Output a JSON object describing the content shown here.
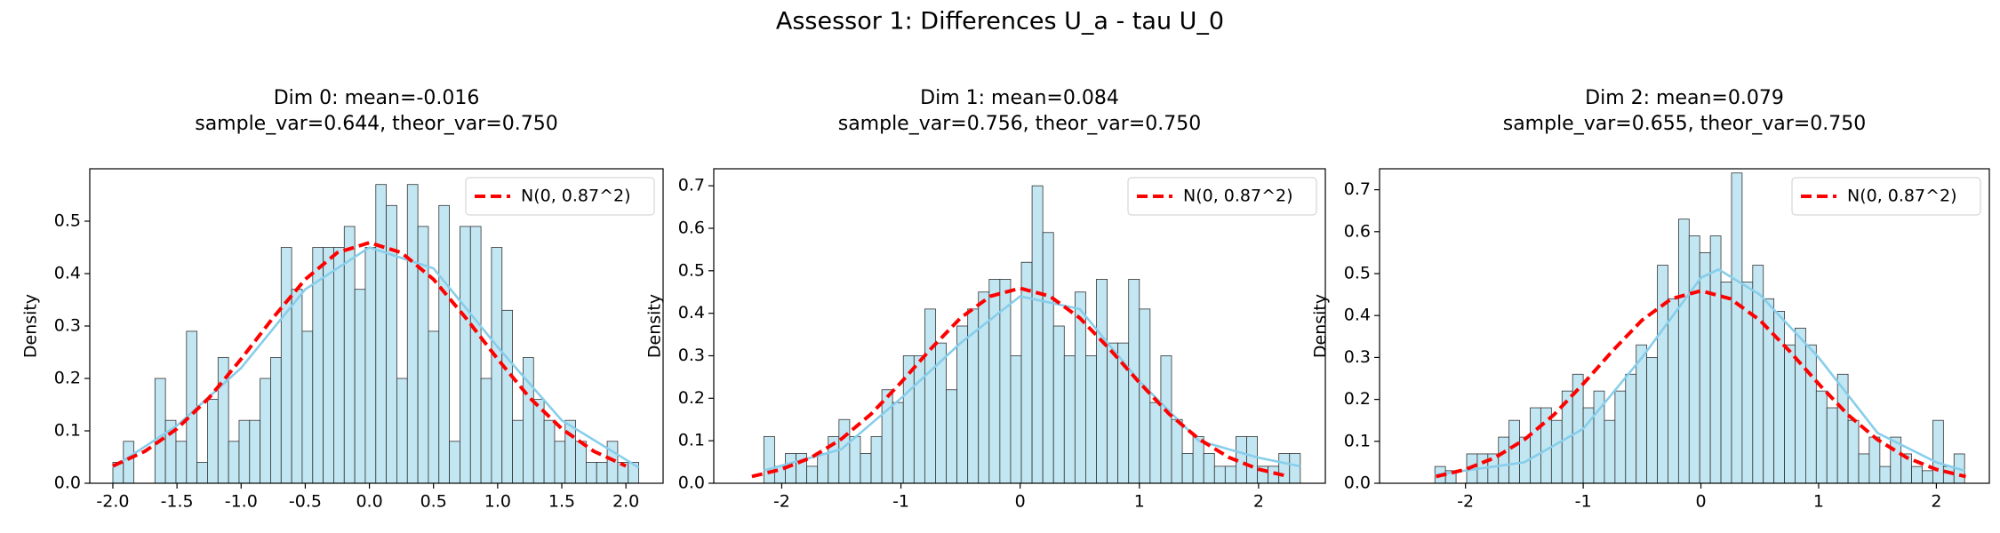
{
  "title": "Assessor 1: Differences U_a - tau U_0",
  "chart_data": [
    {
      "type": "histogram",
      "title": "Dim 0: mean=-0.016",
      "subtitle": "sample_var=0.644, theor_var=0.750",
      "ylabel": "Density",
      "bins": [
        -2.0,
        -1.918,
        -1.836,
        -1.754,
        -1.672,
        -1.59,
        -1.508,
        -1.426,
        -1.344,
        -1.262,
        -1.18,
        -1.098,
        -1.016,
        -0.934,
        -0.852,
        -0.77,
        -0.688,
        -0.606,
        -0.524,
        -0.442,
        -0.36,
        -0.278,
        -0.196,
        -0.114,
        -0.032,
        0.05,
        0.132,
        0.214,
        0.296,
        0.378,
        0.46,
        0.542,
        0.624,
        0.706,
        0.788,
        0.87,
        0.952,
        1.034,
        1.116,
        1.198,
        1.28,
        1.362,
        1.444,
        1.526,
        1.608,
        1.69,
        1.772,
        1.854,
        1.936,
        2.018,
        2.1
      ],
      "values": [
        0.04,
        0.08,
        0,
        0,
        0.2,
        0.12,
        0.08,
        0.29,
        0.04,
        0.16,
        0.24,
        0.08,
        0.12,
        0.12,
        0.2,
        0.24,
        0.45,
        0.37,
        0.29,
        0.45,
        0.45,
        0.45,
        0.49,
        0.37,
        0.45,
        0.57,
        0.53,
        0.2,
        0.57,
        0.49,
        0.29,
        0.53,
        0.08,
        0.49,
        0.49,
        0.2,
        0.45,
        0.33,
        0.12,
        0.24,
        0.16,
        0.12,
        0.08,
        0.12,
        0.08,
        0.04,
        0.04,
        0.08,
        0.04,
        0.04
      ],
      "color": "#c2e6f2",
      "series": [
        {
          "color": "#87ceeb",
          "x": [
            -2,
            -1.5,
            -1,
            -0.5,
            0,
            0.5,
            1,
            1.5,
            2.1
          ],
          "values": [
            0.03,
            0.11,
            0.22,
            0.37,
            0.45,
            0.41,
            0.26,
            0.12,
            0.03
          ]
        },
        {
          "name": "N(0, 0.87^2)",
          "color": "#ff0000",
          "dashed": true,
          "x": [
            -2,
            -1.75,
            -1.5,
            -1.25,
            -1,
            -0.75,
            -0.5,
            -0.25,
            0,
            0.25,
            0.5,
            0.75,
            1,
            1.25,
            1.5,
            1.75,
            2
          ],
          "values": [
            0.033,
            0.061,
            0.104,
            0.163,
            0.237,
            0.316,
            0.389,
            0.44,
            0.459,
            0.44,
            0.389,
            0.316,
            0.237,
            0.163,
            0.104,
            0.061,
            0.033
          ]
        }
      ],
      "xlim": [
        -2.18,
        2.29
      ],
      "ylim": [
        0,
        0.6
      ],
      "xticks": [
        {
          "value": -2,
          "label": "-2.0"
        },
        -1.5,
        {
          "value": -1,
          "label": "-1.0"
        },
        -0.5,
        {
          "value": 0,
          "label": "0.0"
        },
        0.5,
        {
          "value": 1,
          "label": "1.0"
        },
        1.5,
        {
          "value": 2,
          "label": "2.0"
        }
      ],
      "yticks": [
        {
          "value": 0,
          "label": "0.0"
        },
        0.1,
        0.2,
        0.3,
        0.4,
        0.5
      ],
      "legend": "upper right"
    },
    {
      "type": "histogram",
      "title": "Dim 1: mean=0.084",
      "subtitle": "sample_var=0.756, theor_var=0.750",
      "ylabel": "Density",
      "bins": [
        -2.15,
        -2.06,
        -1.97,
        -1.88,
        -1.79,
        -1.7,
        -1.61,
        -1.52,
        -1.43,
        -1.34,
        -1.25,
        -1.16,
        -1.07,
        -0.98,
        -0.89,
        -0.8,
        -0.71,
        -0.62,
        -0.53,
        -0.44,
        -0.35,
        -0.26,
        -0.17,
        -0.08,
        0.01,
        0.1,
        0.19,
        0.28,
        0.37,
        0.46,
        0.55,
        0.64,
        0.73,
        0.82,
        0.91,
        1.0,
        1.09,
        1.18,
        1.27,
        1.36,
        1.45,
        1.54,
        1.63,
        1.72,
        1.81,
        1.9,
        1.99,
        2.08,
        2.17,
        2.26,
        2.35
      ],
      "values": [
        0.11,
        0.04,
        0.07,
        0.07,
        0.04,
        0.07,
        0.11,
        0.15,
        0.11,
        0.07,
        0.11,
        0.22,
        0.19,
        0.3,
        0.3,
        0.41,
        0.33,
        0.22,
        0.37,
        0.41,
        0.45,
        0.48,
        0.48,
        0.3,
        0.52,
        0.7,
        0.59,
        0.37,
        0.3,
        0.45,
        0.3,
        0.48,
        0.33,
        0.33,
        0.48,
        0.41,
        0.19,
        0.3,
        0.15,
        0.07,
        0.11,
        0.07,
        0.04,
        0.04,
        0.11,
        0.11,
        0.04,
        0.04,
        0.07,
        0.07
      ],
      "color": "#c2e6f2",
      "series": [
        {
          "color": "#87ceeb",
          "x": [
            -2.15,
            -1.5,
            -1,
            -0.5,
            0,
            0.5,
            1,
            1.5,
            2,
            2.35
          ],
          "values": [
            0.03,
            0.08,
            0.2,
            0.33,
            0.44,
            0.41,
            0.24,
            0.1,
            0.06,
            0.04
          ]
        },
        {
          "name": "N(0, 0.87^2)",
          "color": "#ff0000",
          "dashed": true,
          "x": [
            -2.25,
            -2,
            -1.75,
            -1.5,
            -1.25,
            -1,
            -0.75,
            -0.5,
            -0.25,
            0,
            0.25,
            0.5,
            0.75,
            1,
            1.25,
            1.5,
            1.75,
            2,
            2.25
          ],
          "values": [
            0.016,
            0.033,
            0.061,
            0.104,
            0.163,
            0.237,
            0.316,
            0.389,
            0.44,
            0.459,
            0.44,
            0.389,
            0.316,
            0.237,
            0.163,
            0.104,
            0.061,
            0.033,
            0.016
          ]
        }
      ],
      "xlim": [
        -2.57,
        2.56
      ],
      "ylim": [
        0,
        0.74
      ],
      "xticks": [
        -2,
        -1,
        0,
        1,
        2
      ],
      "yticks": [
        {
          "value": 0,
          "label": "0.0"
        },
        0.1,
        0.2,
        0.3,
        0.4,
        0.5,
        0.6,
        0.7
      ],
      "legend": "upper right"
    },
    {
      "type": "histogram",
      "title": "Dim 2: mean=0.079",
      "subtitle": "sample_var=0.655, theor_var=0.750",
      "ylabel": "Density",
      "bins": [
        -2.26,
        -2.17,
        -2.08,
        -1.99,
        -1.9,
        -1.81,
        -1.72,
        -1.63,
        -1.54,
        -1.45,
        -1.36,
        -1.27,
        -1.18,
        -1.09,
        -1.0,
        -0.91,
        -0.82,
        -0.73,
        -0.64,
        -0.55,
        -0.46,
        -0.37,
        -0.28,
        -0.19,
        -0.1,
        -0.01,
        0.08,
        0.17,
        0.26,
        0.35,
        0.44,
        0.53,
        0.62,
        0.71,
        0.8,
        0.89,
        0.98,
        1.07,
        1.16,
        1.25,
        1.34,
        1.43,
        1.52,
        1.61,
        1.7,
        1.79,
        1.88,
        1.97,
        2.06,
        2.15,
        2.24
      ],
      "values": [
        0.04,
        0.03,
        0,
        0.07,
        0.07,
        0.07,
        0.11,
        0.15,
        0.11,
        0.18,
        0.18,
        0.15,
        0.22,
        0.26,
        0.18,
        0.22,
        0.15,
        0.22,
        0.26,
        0.33,
        0.3,
        0.52,
        0.44,
        0.63,
        0.59,
        0.55,
        0.59,
        0.48,
        0.74,
        0.48,
        0.52,
        0.44,
        0.41,
        0.33,
        0.37,
        0.33,
        0.22,
        0.18,
        0.26,
        0.15,
        0.07,
        0.11,
        0.04,
        0.11,
        0.07,
        0.04,
        0.03,
        0.15,
        0.04,
        0.07
      ],
      "color": "#c2e6f2",
      "series": [
        {
          "color": "#87ceeb",
          "x": [
            -2.26,
            -1.5,
            -1,
            -0.5,
            0,
            0.15,
            0.5,
            1,
            1.5,
            2,
            2.24
          ],
          "values": [
            0.02,
            0.05,
            0.13,
            0.3,
            0.49,
            0.51,
            0.45,
            0.3,
            0.12,
            0.05,
            0.03
          ]
        },
        {
          "name": "N(0, 0.87^2)",
          "color": "#ff0000",
          "dashed": true,
          "x": [
            -2.25,
            -2,
            -1.75,
            -1.5,
            -1.25,
            -1,
            -0.75,
            -0.5,
            -0.25,
            0,
            0.25,
            0.5,
            0.75,
            1,
            1.25,
            1.5,
            1.75,
            2,
            2.25
          ],
          "values": [
            0.016,
            0.033,
            0.061,
            0.104,
            0.163,
            0.237,
            0.316,
            0.389,
            0.44,
            0.459,
            0.44,
            0.389,
            0.316,
            0.237,
            0.163,
            0.104,
            0.061,
            0.033,
            0.016
          ]
        }
      ],
      "xlim": [
        -2.73,
        2.45
      ],
      "ylim": [
        0,
        0.75
      ],
      "xticks": [
        -2,
        -1,
        0,
        1,
        2
      ],
      "yticks": [
        {
          "value": 0,
          "label": "0.0"
        },
        0.1,
        0.2,
        0.3,
        0.4,
        0.5,
        0.6,
        0.7
      ],
      "legend": "upper right"
    }
  ]
}
